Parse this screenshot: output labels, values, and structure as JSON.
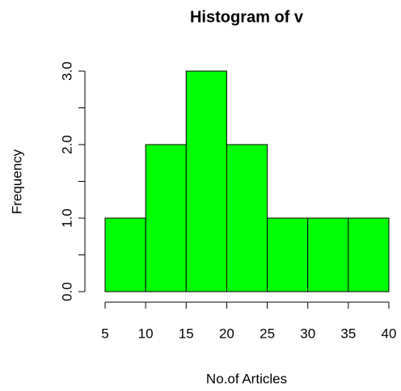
{
  "chart_data": {
    "type": "histogram",
    "title": "Histogram of v",
    "xlabel": "No.of Articles",
    "ylabel": "Frequency",
    "bins": [
      5,
      10,
      15,
      20,
      25,
      30,
      35,
      40
    ],
    "values": [
      1,
      2,
      3,
      2,
      1,
      1,
      1
    ],
    "color": "#00ff00",
    "xlim": [
      5,
      40
    ],
    "xticks": [
      5,
      10,
      15,
      20,
      25,
      30,
      35,
      40
    ],
    "ylim": [
      0,
      3
    ],
    "yticks": [
      {
        "value": 0,
        "label": "0.0"
      },
      {
        "value": 1,
        "label": "1.0"
      },
      {
        "value": 2,
        "label": "2.0"
      },
      {
        "value": 3,
        "label": "3.0"
      }
    ],
    "yminor_ticks": [
      0.5,
      1.5,
      2.5
    ],
    "grid": false
  }
}
